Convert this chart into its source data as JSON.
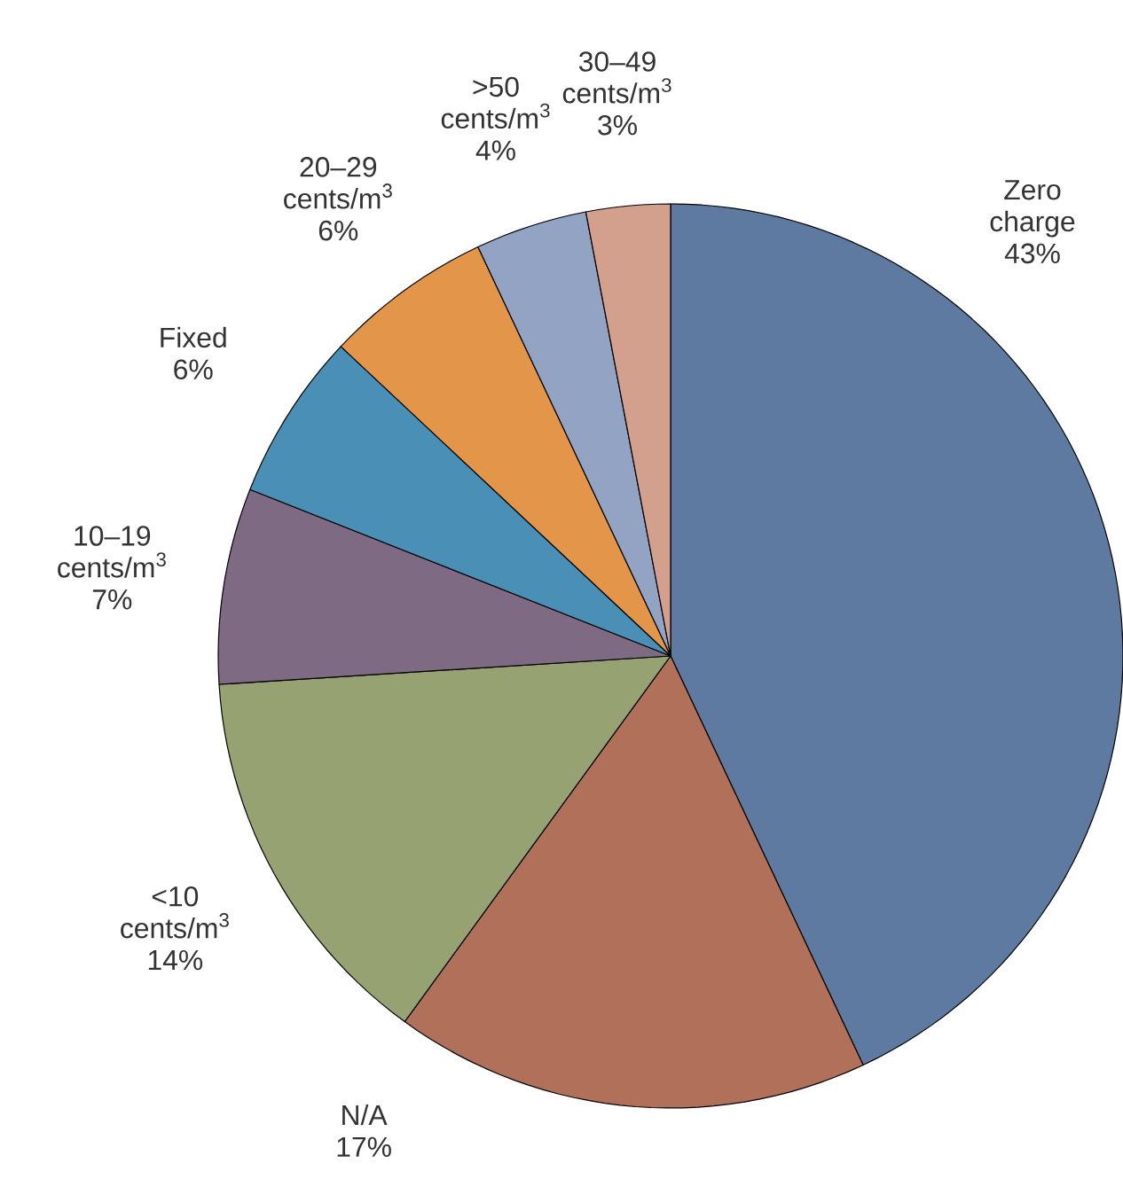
{
  "chart_data": {
    "type": "pie",
    "categories": [
      "Zero charge",
      "N/A",
      "<10 cents/m$^{3}$",
      "10–19 cents/m$^{3}$",
      "Fixed",
      "20–29 cents/m$^{3}$",
      ">50 cents/m$^{3}$",
      "30–49 cents/m$^{3}$"
    ],
    "values": [
      43,
      17,
      14,
      7,
      6,
      6,
      4,
      3
    ],
    "colors": [
      "#5f7aa0",
      "#b0705a",
      "#97a273",
      "#7e6a82",
      "#4a8fb5",
      "#e3964a",
      "#93a3c3",
      "#d4a08e"
    ],
    "value_labels": [
      "43%",
      "17%",
      "14%",
      "7%",
      "6%",
      "6%",
      "4%",
      "3%"
    ]
  }
}
